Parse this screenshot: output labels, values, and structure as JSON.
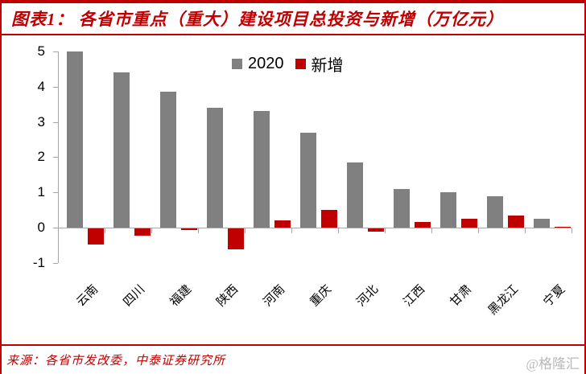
{
  "header": {
    "title": "图表1： 各省市重点（重大）建设项目总投资与新增（万亿元）"
  },
  "chart_data": {
    "type": "bar",
    "categories": [
      "云南",
      "四川",
      "福建",
      "陕西",
      "河南",
      "重庆",
      "河北",
      "江西",
      "甘肃",
      "黑龙江",
      "宁夏"
    ],
    "series": [
      {
        "name": "2020",
        "color": "#808080",
        "values": [
          5.0,
          4.4,
          3.85,
          3.4,
          3.3,
          2.7,
          1.85,
          1.1,
          1.0,
          0.9,
          0.25
        ]
      },
      {
        "name": "新增",
        "color": "#C00000",
        "values": [
          -0.45,
          -0.2,
          -0.03,
          -0.6,
          0.2,
          0.5,
          -0.1,
          0.15,
          0.25,
          0.35,
          0.02
        ]
      }
    ],
    "title": "各省市重点（重大）建设项目总投资与新增（万亿元）",
    "xlabel": "",
    "ylabel": "",
    "ylim": [
      -1,
      5
    ],
    "yticks": [
      5,
      4,
      3,
      2,
      1,
      0,
      -1
    ],
    "legend_position": "top-center",
    "grid": false
  },
  "footer": {
    "source": "来源：各省市发改委，中泰证券研究所",
    "watermark": "@格隆汇"
  },
  "colors": {
    "accent": "#C00000",
    "bar_2020": "#808080",
    "bar_new": "#C00000",
    "axis": "#A6A6A6"
  }
}
